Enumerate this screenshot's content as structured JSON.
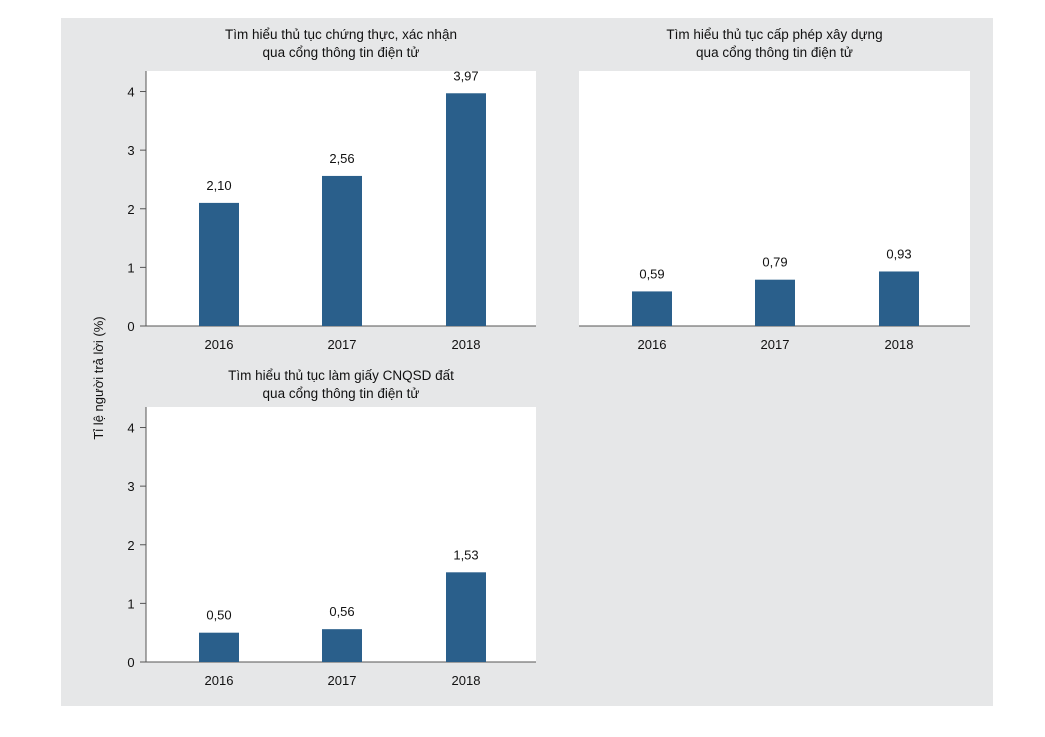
{
  "figure": {
    "background": "#e6e7e8",
    "plot_background": "#ffffff",
    "bar_color": "#2a5f8b",
    "ylabel": "Tỉ lệ người trả lời (%)"
  },
  "chart_data": [
    {
      "type": "bar",
      "title": "Tìm hiểu thủ tục chứng thực, xác nhận",
      "subtitle": "qua cổng thông tin điện tử",
      "categories": [
        "2016",
        "2017",
        "2018"
      ],
      "values": [
        2.1,
        2.56,
        3.97
      ],
      "value_labels": [
        "2,10",
        "2,56",
        "3,97"
      ],
      "ylim": [
        0,
        4.35
      ],
      "yticks": [
        0,
        1,
        2,
        3,
        4
      ],
      "ytick_labels": [
        "0",
        "1",
        "2",
        "3",
        "4"
      ],
      "grid": false
    },
    {
      "type": "bar",
      "title": "Tìm hiểu thủ tục cấp phép xây dựng",
      "subtitle": "qua cổng thông tin điện tử",
      "categories": [
        "2016",
        "2017",
        "2018"
      ],
      "values": [
        0.59,
        0.79,
        0.93
      ],
      "value_labels": [
        "0,59",
        "0,79",
        "0,93"
      ],
      "ylim": [
        0,
        4.35
      ],
      "yticks": [],
      "ytick_labels": [],
      "grid": false
    },
    {
      "type": "bar",
      "title": "Tìm hiểu thủ tục làm giấy CNQSD đất",
      "subtitle": "qua cổng thông tin điện tử",
      "categories": [
        "2016",
        "2017",
        "2018"
      ],
      "values": [
        0.5,
        0.56,
        1.53
      ],
      "value_labels": [
        "0,50",
        "0,56",
        "1,53"
      ],
      "ylim": [
        0,
        4.35
      ],
      "yticks": [
        0,
        1,
        2,
        3,
        4
      ],
      "ytick_labels": [
        "0",
        "1",
        "2",
        "3",
        "4"
      ],
      "grid": false
    }
  ]
}
